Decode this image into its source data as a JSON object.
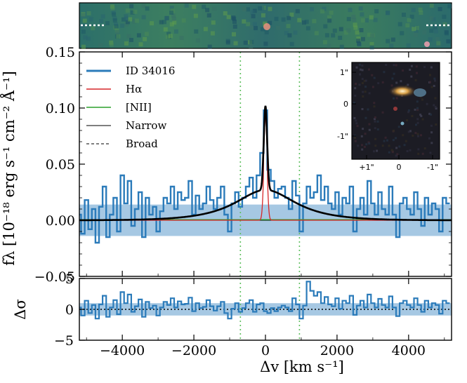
{
  "chart_data": [
    {
      "panel": "spectrum",
      "type": "line",
      "ylabel": "fλ [10⁻¹⁸ erg s⁻¹ cm⁻² Å⁻¹]",
      "xlim": [
        -5200,
        5200
      ],
      "ylim": [
        -0.05,
        0.15
      ],
      "yticks": [
        "−0.05",
        "0.00",
        "0.05",
        "0.10",
        "0.15"
      ],
      "legend_location": "upper-left",
      "legend": [
        {
          "label": "ID 34016",
          "color": "#2b7bba",
          "style": "step"
        },
        {
          "label": "Hα",
          "color": "#d62728",
          "style": "solid"
        },
        {
          "label": "[NII]",
          "color": "#2ca02c",
          "style": "solid"
        },
        {
          "label": "Narrow",
          "color": "#555555",
          "style": "solid"
        },
        {
          "label": "Broad",
          "color": "#555555",
          "style": "dashed"
        }
      ],
      "noise_band_sigma": 0.014,
      "vertical_markers": [
        -700,
        950
      ],
      "observed_x": [
        -5200,
        -5100,
        -5000,
        -4900,
        -4800,
        -4700,
        -4600,
        -4500,
        -4400,
        -4300,
        -4200,
        -4100,
        -4000,
        -3900,
        -3800,
        -3700,
        -3600,
        -3500,
        -3400,
        -3300,
        -3200,
        -3100,
        -3000,
        -2900,
        -2800,
        -2700,
        -2600,
        -2500,
        -2400,
        -2300,
        -2200,
        -2100,
        -2000,
        -1900,
        -1800,
        -1700,
        -1600,
        -1500,
        -1400,
        -1300,
        -1200,
        -1100,
        -1000,
        -900,
        -800,
        -700,
        -600,
        -500,
        -400,
        -300,
        -200,
        -100,
        0,
        100,
        200,
        300,
        400,
        500,
        600,
        700,
        800,
        900,
        1000,
        1100,
        1200,
        1300,
        1400,
        1500,
        1600,
        1700,
        1800,
        1900,
        2000,
        2100,
        2200,
        2300,
        2400,
        2500,
        2600,
        2700,
        2800,
        2900,
        3000,
        3100,
        3200,
        3300,
        3400,
        3500,
        3600,
        3700,
        3800,
        3900,
        4000,
        4100,
        4200,
        4300,
        4400,
        4500,
        4600,
        4700,
        4800,
        4900,
        5000,
        5100
      ],
      "observed_y": [
        0.005,
        -0.012,
        0.018,
        -0.008,
        0.01,
        -0.02,
        0.012,
        0.03,
        -0.015,
        0.005,
        0.02,
        -0.01,
        0.04,
        0.015,
        0.035,
        -0.005,
        0.01,
        0.025,
        -0.015,
        0.02,
        0.005,
        0.012,
        -0.01,
        0.008,
        0.02,
        0.015,
        0.03,
        0.01,
        0.025,
        0.018,
        0.02,
        0.035,
        0.005,
        0.022,
        0.01,
        0.015,
        0.03,
        0.018,
        0.01,
        0.02,
        0.03,
        0.005,
        -0.01,
        0.015,
        0.025,
        0.012,
        0.02,
        0.03,
        0.038,
        0.02,
        0.04,
        0.06,
        0.098,
        0.045,
        0.035,
        0.02,
        0.028,
        0.03,
        0.02,
        0.01,
        0.035,
        0.022,
        -0.01,
        0.015,
        0.03,
        0.02,
        0.025,
        0.04,
        0.018,
        0.03,
        0.015,
        0.01,
        0.025,
        0.005,
        0.02,
        0.015,
        0.03,
        -0.01,
        0.01,
        0.02,
        0.005,
        0.035,
        0.015,
        0.005,
        0.025,
        0.01,
        0.005,
        0.03,
        0.005,
        -0.015,
        0.015,
        0.02,
        0.01,
        0.005,
        0.025,
        0.01,
        -0.005,
        0.02,
        0.005,
        0.015,
        0.01,
        -0.01,
        0.02,
        0.015
      ],
      "model_components": {
        "total_peak": 0.102,
        "narrow_halpha_peak": 0.075,
        "narrow_fwhm_kms": 110,
        "broad_peak": 0.027,
        "broad_fwhm_kms": 2200,
        "nii_peak": 0.0005
      }
    },
    {
      "panel": "residuals",
      "type": "line",
      "xlabel": "Δv [km s⁻¹]",
      "ylabel": "Δσ",
      "xlim": [
        -5200,
        5200
      ],
      "ylim": [
        -5,
        5
      ],
      "yticks": [
        "−5",
        "0",
        "5"
      ],
      "xticks": [
        "−4000",
        "−2000",
        "0",
        "2000",
        "4000"
      ],
      "noise_band_sigma": 1,
      "residual_y": [
        0.3,
        -1.0,
        1.4,
        -0.6,
        0.7,
        -1.5,
        0.8,
        2.2,
        -1.2,
        0.3,
        1.5,
        -0.8,
        2.8,
        1.0,
        2.4,
        -0.4,
        0.5,
        1.6,
        -1.2,
        1.2,
        0.2,
        0.6,
        -1.0,
        0.3,
        1.2,
        0.7,
        1.8,
        0.3,
        1.3,
        0.8,
        0.9,
        1.9,
        -0.3,
        1.0,
        0.2,
        0.4,
        1.5,
        0.5,
        -0.2,
        0.5,
        1.2,
        -0.6,
        -1.5,
        0.1,
        1.0,
        -0.4,
        0.2,
        1.0,
        1.5,
        -0.4,
        0.8,
        1.0,
        -0.3,
        -0.6,
        0.2,
        -0.3,
        0.3,
        0.6,
        0.3,
        -0.3,
        1.8,
        0.8,
        -1.5,
        0.6,
        4.5,
        3.0,
        2.2,
        2.8,
        1.0,
        2.0,
        0.8,
        0.5,
        1.8,
        0.1,
        1.4,
        1.0,
        2.2,
        -0.9,
        0.6,
        1.4,
        0.3,
        2.4,
        1.0,
        0.3,
        1.7,
        0.7,
        0.3,
        2.1,
        0.3,
        -1.1,
        1.0,
        1.4,
        0.7,
        0.3,
        1.8,
        0.7,
        -0.4,
        1.4,
        0.3,
        1.0,
        0.7,
        -0.7,
        1.4,
        1.0
      ]
    }
  ],
  "inset": {
    "x_ticks": [
      "+1\"",
      "0",
      "-1\""
    ],
    "y_ticks": [
      "1\"",
      "0",
      "-1\""
    ]
  },
  "colors": {
    "observed": "#2b7bba",
    "band": "#a6c8e3",
    "halpha": "#d62728",
    "nii": "#2ca02c",
    "model": "#000000",
    "marker": "#5fbf5f"
  }
}
